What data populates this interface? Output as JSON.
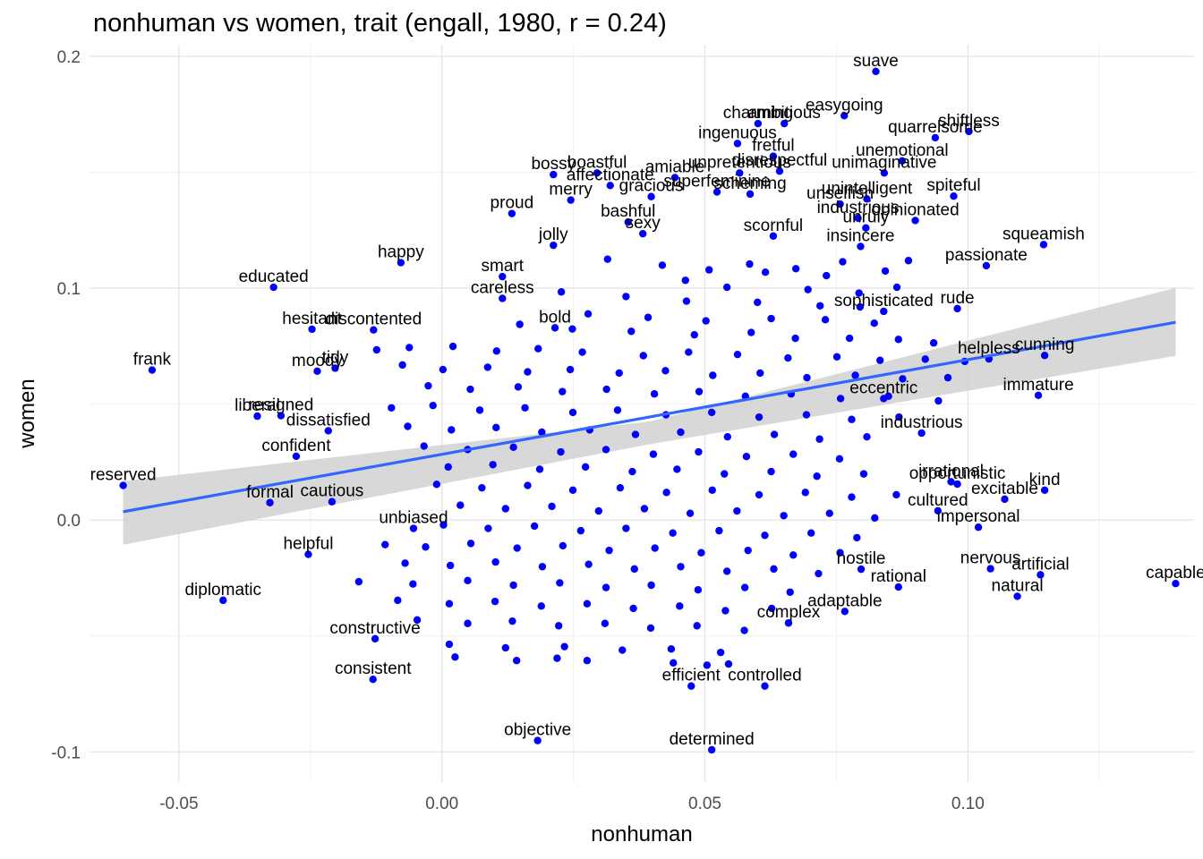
{
  "chart_data": {
    "type": "scatter",
    "title": "nonhuman vs women, trait (engall, 1980, r = 0.24)",
    "xlabel": "nonhuman",
    "ylabel": "women",
    "xlim": [
      -0.067,
      0.143
    ],
    "ylim": [
      -0.113,
      0.205
    ],
    "x_ticks": [
      -0.05,
      0.0,
      0.05,
      0.1
    ],
    "x_tick_labels": [
      "-0.05",
      "0.00",
      "0.05",
      "0.10"
    ],
    "y_ticks": [
      -0.1,
      0.0,
      0.1,
      0.2
    ],
    "y_tick_labels": [
      "-0.1",
      "0.0",
      "0.1",
      "0.2"
    ],
    "grid": true,
    "point_color": "#0000ff",
    "regression": {
      "method": "lm",
      "x_range": [
        -0.0606,
        0.1395
      ],
      "y_at_start": 0.0036,
      "y_at_end": 0.0853,
      "band_start": [
        -0.0106,
        0.0168
      ],
      "band_mid": [
        0.0327,
        0.0425
      ],
      "band_end": [
        0.0708,
        0.1001
      ],
      "line_color": "#3366ff",
      "band_color": "#d1d1d1"
    },
    "labeled_points": [
      {
        "label": "suave",
        "x": 0.0825,
        "y": 0.1935
      },
      {
        "label": "shiftless",
        "x": 0.1002,
        "y": 0.1676
      },
      {
        "label": "quarrelsome",
        "x": 0.0938,
        "y": 0.1649
      },
      {
        "label": "easygoing",
        "x": 0.0765,
        "y": 0.1744
      },
      {
        "label": "charming",
        "x": 0.0601,
        "y": 0.171
      },
      {
        "label": "ambitious",
        "x": 0.0651,
        "y": 0.171
      },
      {
        "label": "ingenuous",
        "x": 0.0562,
        "y": 0.1624
      },
      {
        "label": "fretful",
        "x": 0.063,
        "y": 0.1569
      },
      {
        "label": "unemotional",
        "x": 0.0875,
        "y": 0.1549
      },
      {
        "label": "unpretentious",
        "x": 0.0566,
        "y": 0.1497
      },
      {
        "label": "disrespectful",
        "x": 0.0642,
        "y": 0.1505
      },
      {
        "label": "unimaginative",
        "x": 0.0841,
        "y": 0.1497
      },
      {
        "label": "boastful",
        "x": 0.0295,
        "y": 0.1497
      },
      {
        "label": "bossy",
        "x": 0.0212,
        "y": 0.149
      },
      {
        "label": "affectionate",
        "x": 0.032,
        "y": 0.1443
      },
      {
        "label": "amiable",
        "x": 0.0443,
        "y": 0.1477
      },
      {
        "label": "superfeminine",
        "x": 0.0523,
        "y": 0.1415
      },
      {
        "label": "gracious",
        "x": 0.0398,
        "y": 0.1395
      },
      {
        "label": "scheming",
        "x": 0.0586,
        "y": 0.1406
      },
      {
        "label": "spiteful",
        "x": 0.0973,
        "y": 0.1397
      },
      {
        "label": "unintelligent",
        "x": 0.0808,
        "y": 0.1385
      },
      {
        "label": "unselfish",
        "x": 0.0757,
        "y": 0.1363
      },
      {
        "label": "industrious",
        "x": 0.0791,
        "y": 0.1302
      },
      {
        "label": "opinionated",
        "x": 0.09,
        "y": 0.1292
      },
      {
        "label": "unruly",
        "x": 0.0806,
        "y": 0.126
      },
      {
        "label": "merry",
        "x": 0.0245,
        "y": 0.138
      },
      {
        "label": "proud",
        "x": 0.0133,
        "y": 0.1322
      },
      {
        "label": "bashful",
        "x": 0.0354,
        "y": 0.1285
      },
      {
        "label": "sexy",
        "x": 0.0382,
        "y": 0.1235
      },
      {
        "label": "scornful",
        "x": 0.063,
        "y": 0.1225
      },
      {
        "label": "insincere",
        "x": 0.0796,
        "y": 0.118
      },
      {
        "label": "squeamish",
        "x": 0.1144,
        "y": 0.1188
      },
      {
        "label": "passionate",
        "x": 0.1035,
        "y": 0.1097
      },
      {
        "label": "happy",
        "x": -0.0078,
        "y": 0.111
      },
      {
        "label": "jolly",
        "x": 0.0212,
        "y": 0.1185
      },
      {
        "label": "smart",
        "x": 0.0115,
        "y": 0.105
      },
      {
        "label": "educated",
        "x": -0.032,
        "y": 0.1004
      },
      {
        "label": "careless",
        "x": 0.0115,
        "y": 0.0956
      },
      {
        "label": "rude",
        "x": 0.098,
        "y": 0.0912
      },
      {
        "label": "sophisticated",
        "x": 0.084,
        "y": 0.09
      },
      {
        "label": "hesitant",
        "x": -0.0247,
        "y": 0.0823
      },
      {
        "label": "discontented",
        "x": -0.013,
        "y": 0.082
      },
      {
        "label": "bold",
        "x": 0.0215,
        "y": 0.0829
      },
      {
        "label": "frank",
        "x": -0.0551,
        "y": 0.0647
      },
      {
        "label": "moody",
        "x": -0.0237,
        "y": 0.0642
      },
      {
        "label": "tidy",
        "x": -0.0203,
        "y": 0.0655
      },
      {
        "label": "helpless",
        "x": 0.104,
        "y": 0.0695
      },
      {
        "label": "cunning",
        "x": 0.1146,
        "y": 0.071
      },
      {
        "label": "immature",
        "x": 0.1134,
        "y": 0.0538
      },
      {
        "label": "eccentric",
        "x": 0.084,
        "y": 0.0524
      },
      {
        "label": "liberal",
        "x": -0.0351,
        "y": 0.0448
      },
      {
        "label": "resigned",
        "x": -0.0306,
        "y": 0.045
      },
      {
        "label": "dissatisfied",
        "x": -0.0216,
        "y": 0.0385
      },
      {
        "label": "confident",
        "x": -0.0277,
        "y": 0.0275
      },
      {
        "label": "industrious",
        "x": 0.0912,
        "y": 0.0375
      },
      {
        "label": "reserved",
        "x": -0.0606,
        "y": 0.0149
      },
      {
        "label": "formal",
        "x": -0.0327,
        "y": 0.0075
      },
      {
        "label": "cautious",
        "x": -0.0209,
        "y": 0.0079
      },
      {
        "label": "irrational",
        "x": 0.0968,
        "y": 0.0165
      },
      {
        "label": "opportunistic",
        "x": 0.098,
        "y": 0.0155
      },
      {
        "label": "kind",
        "x": 0.1146,
        "y": 0.0129
      },
      {
        "label": "excitable",
        "x": 0.107,
        "y": 0.009
      },
      {
        "label": "cultured",
        "x": 0.0943,
        "y": 0.004
      },
      {
        "label": "impersonal",
        "x": 0.102,
        "y": -0.0031
      },
      {
        "label": "unbiased",
        "x": -0.0054,
        "y": -0.0036
      },
      {
        "label": "helpful",
        "x": -0.0254,
        "y": -0.0148
      },
      {
        "label": "hostile",
        "x": 0.0797,
        "y": -0.0212
      },
      {
        "label": "nervous",
        "x": 0.1043,
        "y": -0.021
      },
      {
        "label": "artificial",
        "x": 0.1138,
        "y": -0.0236
      },
      {
        "label": "capable",
        "x": 0.1395,
        "y": -0.0274
      },
      {
        "label": "natural",
        "x": 0.1094,
        "y": -0.0329
      },
      {
        "label": "rational",
        "x": 0.0868,
        "y": -0.0289
      },
      {
        "label": "diplomatic",
        "x": -0.0416,
        "y": -0.0346
      },
      {
        "label": "adaptable",
        "x": 0.0766,
        "y": -0.0394
      },
      {
        "label": "complex",
        "x": 0.0659,
        "y": -0.0444
      },
      {
        "label": "constructive",
        "x": -0.0127,
        "y": -0.0512
      },
      {
        "label": "consistent",
        "x": -0.0131,
        "y": -0.0687
      },
      {
        "label": "efficient",
        "x": 0.0474,
        "y": -0.0716
      },
      {
        "label": "controlled",
        "x": 0.0614,
        "y": -0.0716
      },
      {
        "label": "objective",
        "x": 0.0182,
        "y": -0.0951
      },
      {
        "label": "determined",
        "x": 0.0513,
        "y": -0.0991
      }
    ],
    "cloud_points": [
      [
        0.0315,
        0.1125
      ],
      [
        0.0419,
        0.1099
      ],
      [
        0.0508,
        0.1079
      ],
      [
        0.0585,
        0.1104
      ],
      [
        0.0615,
        0.1069
      ],
      [
        0.0673,
        0.1084
      ],
      [
        0.0731,
        0.1054
      ],
      [
        0.0762,
        0.1114
      ],
      [
        0.0843,
        0.1074
      ],
      [
        0.0887,
        0.1119
      ],
      [
        0.0463,
        0.1034
      ],
      [
        0.0542,
        0.1004
      ],
      [
        0.0696,
        0.0994
      ],
      [
        0.0793,
        0.0979
      ],
      [
        0.0865,
        0.1004
      ],
      [
        0.0227,
        0.0984
      ],
      [
        0.035,
        0.0964
      ],
      [
        0.0465,
        0.0944
      ],
      [
        0.06,
        0.0939
      ],
      [
        0.0719,
        0.0924
      ],
      [
        0.0795,
        0.0919
      ],
      [
        0.0278,
        0.0889
      ],
      [
        0.0392,
        0.0874
      ],
      [
        0.0502,
        0.0859
      ],
      [
        0.0626,
        0.0869
      ],
      [
        0.0729,
        0.0864
      ],
      [
        0.0822,
        0.0849
      ],
      [
        0.0148,
        0.0844
      ],
      [
        0.0248,
        0.0824
      ],
      [
        0.036,
        0.0814
      ],
      [
        0.048,
        0.0799
      ],
      [
        0.0588,
        0.0809
      ],
      [
        0.0672,
        0.0784
      ],
      [
        0.0775,
        0.0784
      ],
      [
        0.0868,
        0.0779
      ],
      [
        0.0935,
        0.0764
      ],
      [
        -0.0124,
        0.0734
      ],
      [
        -0.0062,
        0.0744
      ],
      [
        0.0021,
        0.0749
      ],
      [
        0.0104,
        0.0729
      ],
      [
        0.0183,
        0.0739
      ],
      [
        0.0267,
        0.0724
      ],
      [
        0.0383,
        0.0709
      ],
      [
        0.0469,
        0.0724
      ],
      [
        0.0562,
        0.0714
      ],
      [
        0.0658,
        0.0699
      ],
      [
        0.0751,
        0.0704
      ],
      [
        0.0833,
        0.0689
      ],
      [
        0.0919,
        0.0694
      ],
      [
        0.0994,
        0.0684
      ],
      [
        -0.0075,
        0.0669
      ],
      [
        0.0002,
        0.0649
      ],
      [
        0.0087,
        0.0659
      ],
      [
        0.0163,
        0.0639
      ],
      [
        0.0244,
        0.0649
      ],
      [
        0.0337,
        0.0634
      ],
      [
        0.0425,
        0.0644
      ],
      [
        0.0515,
        0.0624
      ],
      [
        0.0605,
        0.0634
      ],
      [
        0.0694,
        0.0614
      ],
      [
        0.0786,
        0.0624
      ],
      [
        0.0876,
        0.0609
      ],
      [
        0.0962,
        0.0614
      ],
      [
        -0.0026,
        0.0579
      ],
      [
        0.0054,
        0.0564
      ],
      [
        0.0145,
        0.0574
      ],
      [
        0.0229,
        0.0554
      ],
      [
        0.0313,
        0.0564
      ],
      [
        0.0404,
        0.0544
      ],
      [
        0.0489,
        0.0554
      ],
      [
        0.0577,
        0.0534
      ],
      [
        0.0664,
        0.0544
      ],
      [
        0.0758,
        0.0524
      ],
      [
        0.0849,
        0.0534
      ],
      [
        0.0944,
        0.0514
      ],
      [
        -0.0096,
        0.0484
      ],
      [
        -0.0017,
        0.0494
      ],
      [
        0.0072,
        0.0474
      ],
      [
        0.0158,
        0.0484
      ],
      [
        0.0249,
        0.0464
      ],
      [
        0.0334,
        0.0474
      ],
      [
        0.0426,
        0.0454
      ],
      [
        0.0513,
        0.0464
      ],
      [
        0.0603,
        0.0444
      ],
      [
        0.0693,
        0.0454
      ],
      [
        0.0779,
        0.0434
      ],
      [
        0.0869,
        0.0444
      ],
      [
        -0.0065,
        0.0404
      ],
      [
        0.0018,
        0.0389
      ],
      [
        0.0103,
        0.0399
      ],
      [
        0.019,
        0.0379
      ],
      [
        0.0281,
        0.0389
      ],
      [
        0.0368,
        0.0369
      ],
      [
        0.0454,
        0.0379
      ],
      [
        0.0543,
        0.0359
      ],
      [
        0.0632,
        0.0369
      ],
      [
        0.0718,
        0.0349
      ],
      [
        0.0808,
        0.0359
      ],
      [
        -0.0034,
        0.0319
      ],
      [
        0.0049,
        0.0304
      ],
      [
        0.0136,
        0.0314
      ],
      [
        0.0226,
        0.0294
      ],
      [
        0.0312,
        0.0304
      ],
      [
        0.0402,
        0.0284
      ],
      [
        0.0488,
        0.0294
      ],
      [
        0.0579,
        0.0274
      ],
      [
        0.0668,
        0.0284
      ],
      [
        0.0756,
        0.0264
      ],
      [
        0.0012,
        0.0229
      ],
      [
        0.0097,
        0.0239
      ],
      [
        0.0186,
        0.0219
      ],
      [
        0.0273,
        0.0229
      ],
      [
        0.0362,
        0.0209
      ],
      [
        0.0447,
        0.0219
      ],
      [
        0.0537,
        0.0199
      ],
      [
        0.0626,
        0.0209
      ],
      [
        0.0713,
        0.0189
      ],
      [
        0.0802,
        0.0199
      ],
      [
        -0.001,
        0.0154
      ],
      [
        0.0076,
        0.0139
      ],
      [
        0.0163,
        0.0149
      ],
      [
        0.0249,
        0.0129
      ],
      [
        0.0339,
        0.0139
      ],
      [
        0.0427,
        0.0119
      ],
      [
        0.0514,
        0.0129
      ],
      [
        0.0603,
        0.0109
      ],
      [
        0.0691,
        0.0119
      ],
      [
        0.0779,
        0.0099
      ],
      [
        0.0864,
        0.0109
      ],
      [
        0.0035,
        0.0064
      ],
      [
        0.0121,
        0.0049
      ],
      [
        0.0209,
        0.0059
      ],
      [
        0.0298,
        0.0039
      ],
      [
        0.0385,
        0.0049
      ],
      [
        0.0472,
        0.0029
      ],
      [
        0.0561,
        0.0039
      ],
      [
        0.065,
        0.0019
      ],
      [
        0.0737,
        0.0029
      ],
      [
        0.0823,
        0.0009
      ],
      [
        0.0003,
        -0.0021
      ],
      [
        0.0088,
        -0.0036
      ],
      [
        0.0176,
        -0.0026
      ],
      [
        0.0264,
        -0.0046
      ],
      [
        0.035,
        -0.0036
      ],
      [
        0.0439,
        -0.0056
      ],
      [
        0.0527,
        -0.0046
      ],
      [
        0.0614,
        -0.0066
      ],
      [
        0.0702,
        -0.0056
      ],
      [
        0.0789,
        -0.0076
      ],
      [
        -0.0108,
        -0.0106
      ],
      [
        -0.0031,
        -0.0116
      ],
      [
        0.0055,
        -0.0101
      ],
      [
        0.0143,
        -0.0121
      ],
      [
        0.023,
        -0.0111
      ],
      [
        0.0318,
        -0.0131
      ],
      [
        0.0405,
        -0.0121
      ],
      [
        0.0493,
        -0.0141
      ],
      [
        0.0582,
        -0.0131
      ],
      [
        0.0668,
        -0.0151
      ],
      [
        0.0757,
        -0.0141
      ],
      [
        -0.007,
        -0.0186
      ],
      [
        0.0016,
        -0.0196
      ],
      [
        0.0102,
        -0.0181
      ],
      [
        0.0191,
        -0.0201
      ],
      [
        0.0279,
        -0.0191
      ],
      [
        0.0366,
        -0.0211
      ],
      [
        0.0454,
        -0.0201
      ],
      [
        0.0542,
        -0.0221
      ],
      [
        0.0631,
        -0.0211
      ],
      [
        0.0716,
        -0.0231
      ],
      [
        -0.0158,
        -0.0266
      ],
      [
        -0.0055,
        -0.0276
      ],
      [
        0.0049,
        -0.0261
      ],
      [
        0.0136,
        -0.0281
      ],
      [
        0.0224,
        -0.0271
      ],
      [
        0.0312,
        -0.0291
      ],
      [
        0.0398,
        -0.0281
      ],
      [
        0.0487,
        -0.0301
      ],
      [
        0.0576,
        -0.0291
      ],
      [
        0.0662,
        -0.0311
      ],
      [
        -0.0084,
        -0.0346
      ],
      [
        0.0014,
        -0.0361
      ],
      [
        0.0101,
        -0.0351
      ],
      [
        0.0189,
        -0.0371
      ],
      [
        0.0276,
        -0.0361
      ],
      [
        0.0364,
        -0.0381
      ],
      [
        0.0452,
        -0.0371
      ],
      [
        0.0539,
        -0.0391
      ],
      [
        0.0627,
        -0.0381
      ],
      [
        -0.0047,
        -0.0431
      ],
      [
        0.0049,
        -0.0446
      ],
      [
        0.0134,
        -0.0436
      ],
      [
        0.0222,
        -0.0456
      ],
      [
        0.031,
        -0.0446
      ],
      [
        0.0397,
        -0.0466
      ],
      [
        0.0485,
        -0.0456
      ],
      [
        0.0575,
        -0.0476
      ],
      [
        0.0014,
        -0.0536
      ],
      [
        0.0121,
        -0.0551
      ],
      [
        0.0233,
        -0.0546
      ],
      [
        0.0343,
        -0.0561
      ],
      [
        0.0436,
        -0.0556
      ],
      [
        0.053,
        -0.0571
      ],
      [
        0.0025,
        -0.0591
      ],
      [
        0.0142,
        -0.0606
      ],
      [
        0.0219,
        -0.0596
      ],
      [
        0.0276,
        -0.0606
      ],
      [
        0.044,
        -0.0616
      ],
      [
        0.0504,
        -0.0626
      ],
      [
        0.0545,
        -0.0621
      ]
    ]
  }
}
